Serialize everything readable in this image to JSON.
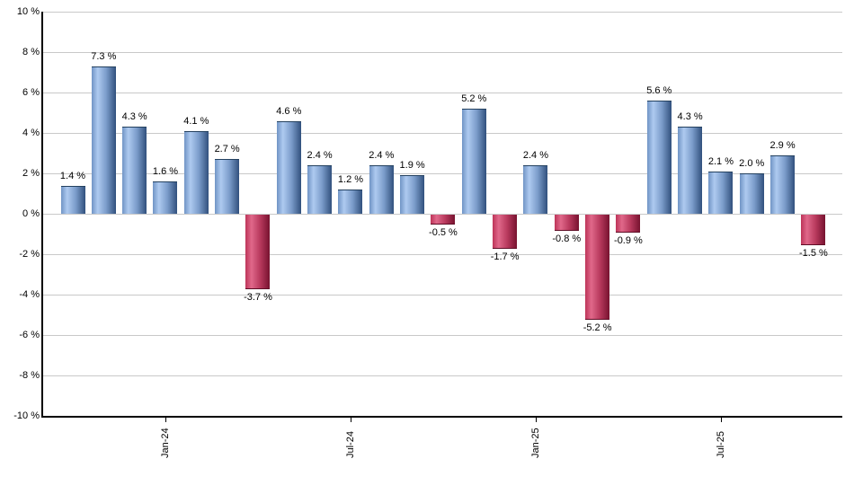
{
  "chart_data": {
    "type": "bar",
    "title": "",
    "xlabel": "",
    "ylabel": "",
    "unit": "%",
    "ylim": [
      -10,
      10
    ],
    "grid": "horizontal",
    "legend": "none",
    "values": [
      1.4,
      7.3,
      4.3,
      1.6,
      4.1,
      2.7,
      -3.7,
      4.6,
      2.4,
      1.2,
      2.4,
      1.9,
      -0.5,
      5.2,
      -1.7,
      2.4,
      -0.8,
      -5.2,
      -0.9,
      5.6,
      4.3,
      2.1,
      2.0,
      2.9,
      -1.5
    ],
    "bar_labels": [
      "1.4 %",
      "7.3 %",
      "4.3 %",
      "1.6 %",
      "4.1 %",
      "2.7 %",
      "-3.7 %",
      "4.6 %",
      "2.4 %",
      "1.2 %",
      "2.4 %",
      "1.9 %",
      "-0.5 %",
      "5.2 %",
      "-1.7 %",
      "2.4 %",
      "-0.8 %",
      "-5.2 %",
      "-0.9 %",
      "5.6 %",
      "4.3 %",
      "2.1 %",
      "2.0 %",
      "2.9 %",
      "-1.5 %"
    ],
    "x_ticks": [
      {
        "index": 3,
        "label": "Jan-24"
      },
      {
        "index": 9,
        "label": "Jul-24"
      },
      {
        "index": 15,
        "label": "Jan-25"
      },
      {
        "index": 21,
        "label": "Jul-25"
      }
    ],
    "y_ticks": [
      {
        "value": 10,
        "label": "10 %"
      },
      {
        "value": 8,
        "label": "8 %"
      },
      {
        "value": 6,
        "label": "6 %"
      },
      {
        "value": 4,
        "label": "4 %"
      },
      {
        "value": 2,
        "label": "2 %"
      },
      {
        "value": 0,
        "label": "0 %"
      },
      {
        "value": -2,
        "label": "-2 %"
      },
      {
        "value": -4,
        "label": "-4 %"
      },
      {
        "value": -6,
        "label": "-6 %"
      },
      {
        "value": -8,
        "label": "-8 %"
      },
      {
        "value": -10,
        "label": "-10 %"
      }
    ],
    "colors": {
      "positive_edge": "#7094c5",
      "positive_highlight": "#aecaf0",
      "positive_mid": "#7b9cca",
      "positive_dark": "#31507d",
      "positive_border": "#24415f",
      "negative_edge": "#bd3459",
      "negative_highlight": "#e0688a",
      "negative_mid": "#b93a5e",
      "negative_dark": "#77122f",
      "negative_border": "#5f0d26",
      "gridline": "#c9c9c9",
      "axis": "#000000",
      "text": "#000000",
      "background": "#ffffff"
    }
  }
}
